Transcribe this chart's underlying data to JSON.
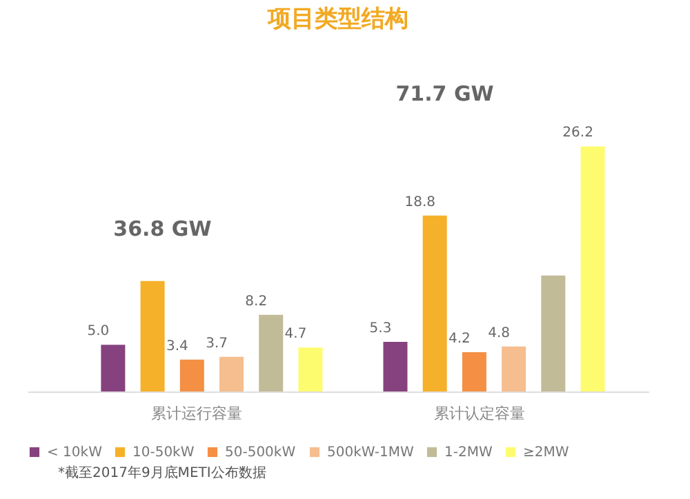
{
  "chart_data": {
    "type": "bar",
    "title": "项目类型结构",
    "categories": [
      "累计运行容量",
      "累计认定容量"
    ],
    "series": [
      {
        "name": "< 10kW",
        "color": "#86427e",
        "values": [
          5.0,
          5.3
        ],
        "value_labels": [
          "5.0",
          "5.3"
        ]
      },
      {
        "name": "10-50kW",
        "color": "#f6b12a",
        "values": [
          11.8,
          18.8
        ],
        "value_labels": [
          null,
          "18.8"
        ]
      },
      {
        "name": "50-500kW",
        "color": "#f48f44",
        "values": [
          3.4,
          4.2
        ],
        "value_labels": [
          "3.4",
          "4.2"
        ]
      },
      {
        "name": "500kW-1MW",
        "color": "#f6bd8e",
        "values": [
          3.7,
          4.8
        ],
        "value_labels": [
          "3.7",
          "4.8"
        ]
      },
      {
        "name": "1-2MW",
        "color": "#c2bb98",
        "values": [
          8.2,
          12.4
        ],
        "value_labels": [
          "8.2",
          null
        ]
      },
      {
        "name": "≥2MW",
        "color": "#fdfb6e",
        "values": [
          4.7,
          26.2
        ],
        "value_labels": [
          "4.7",
          "26.2"
        ]
      }
    ],
    "totals": [
      "36.8 GW",
      "71.7 GW"
    ],
    "legend": "bottom",
    "annotations": [
      "*截至2017年9月底METI公布数据"
    ]
  }
}
